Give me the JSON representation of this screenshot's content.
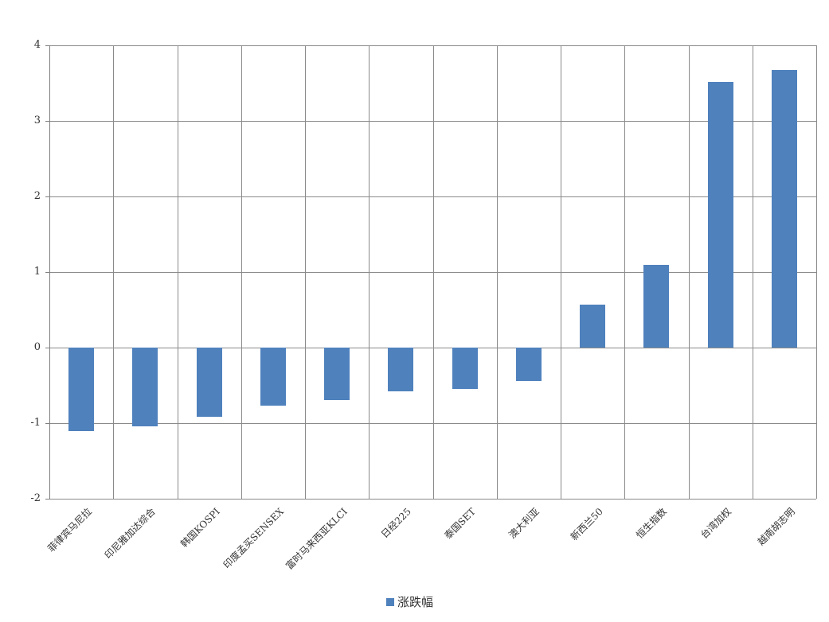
{
  "chart_data": {
    "type": "bar",
    "title": "",
    "xlabel": "",
    "ylabel": "",
    "categories": [
      "菲律宾马尼拉",
      "印尼雅加达综合",
      "韩国KOSPI",
      "印度孟买SENSEX",
      "富时马来西亚KLCI",
      "日经225",
      "泰国SET",
      "澳大利亚",
      "新西兰50",
      "恒生指数",
      "台湾加权",
      "越南胡志明"
    ],
    "series": [
      {
        "name": "涨跌幅",
        "values": [
          -1.11,
          -1.04,
          -0.92,
          -0.77,
          -0.69,
          -0.58,
          -0.55,
          -0.44,
          0.57,
          1.09,
          3.52,
          3.67
        ]
      }
    ],
    "ylim": [
      -2,
      4
    ],
    "y_ticks": [
      4,
      3,
      2,
      1,
      0,
      -1,
      -2
    ],
    "grid": true,
    "legend_position": "bottom",
    "colors": {
      "bar": "#4F81BD",
      "gridline": "#8A8A8A",
      "axis": "#7F7F7F",
      "text": "#333333",
      "background": "#FFFFFF"
    }
  },
  "legend": {
    "label": "涨跌幅"
  }
}
